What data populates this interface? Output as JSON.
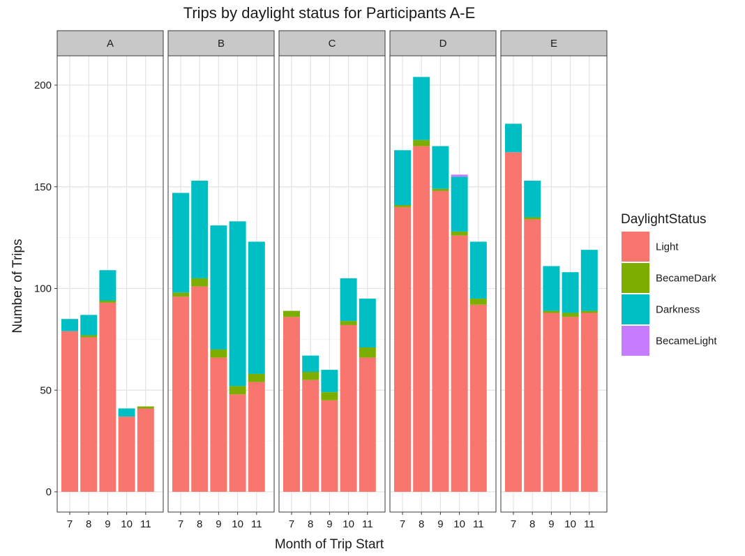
{
  "chart_data": {
    "type": "bar",
    "stacked": true,
    "faceted": true,
    "title": "Trips by daylight status for Participants A-E",
    "xlabel": "Month of Trip Start",
    "ylabel": "Number of Trips",
    "ylim": [
      0,
      215
    ],
    "yticks": [
      0,
      50,
      100,
      150,
      200
    ],
    "grid": true,
    "legend": {
      "title": "DaylightStatus",
      "position": "right"
    },
    "categories": [
      "7",
      "8",
      "9",
      "10",
      "11"
    ],
    "series": [
      {
        "name": "Light",
        "color": "#F8766D"
      },
      {
        "name": "BecameDark",
        "color": "#7CAE00"
      },
      {
        "name": "Darkness",
        "color": "#00BFC4"
      },
      {
        "name": "BecameLight",
        "color": "#C77CFF"
      }
    ],
    "facets": [
      {
        "label": "A",
        "stacks": {
          "Light": [
            79,
            76,
            93,
            37,
            41
          ],
          "BecameDark": [
            0,
            1,
            1,
            0,
            1
          ],
          "Darkness": [
            6,
            10,
            15,
            4,
            0
          ],
          "BecameLight": [
            0,
            0,
            0,
            0,
            0
          ]
        }
      },
      {
        "label": "B",
        "stacks": {
          "Light": [
            96,
            101,
            66,
            48,
            54
          ],
          "BecameDark": [
            2,
            4,
            4,
            4,
            4
          ],
          "Darkness": [
            49,
            48,
            61,
            81,
            65
          ],
          "BecameLight": [
            0,
            0,
            0,
            0,
            0
          ]
        }
      },
      {
        "label": "C",
        "stacks": {
          "Light": [
            86,
            55,
            45,
            82,
            66
          ],
          "BecameDark": [
            3,
            4,
            4,
            2,
            5
          ],
          "Darkness": [
            0,
            8,
            11,
            21,
            24
          ],
          "BecameLight": [
            0,
            0,
            0,
            0,
            0
          ]
        }
      },
      {
        "label": "D",
        "stacks": {
          "Light": [
            140,
            170,
            148,
            126,
            92
          ],
          "BecameDark": [
            1,
            3,
            1,
            2,
            3
          ],
          "Darkness": [
            27,
            31,
            21,
            27,
            28
          ],
          "BecameLight": [
            0,
            0,
            0,
            1,
            0
          ]
        }
      },
      {
        "label": "E",
        "stacks": {
          "Light": [
            167,
            134,
            88,
            86,
            88
          ],
          "BecameDark": [
            0,
            1,
            1,
            2,
            1
          ],
          "Darkness": [
            14,
            18,
            22,
            20,
            30
          ],
          "BecameLight": [
            0,
            0,
            0,
            0,
            0
          ]
        }
      }
    ]
  }
}
